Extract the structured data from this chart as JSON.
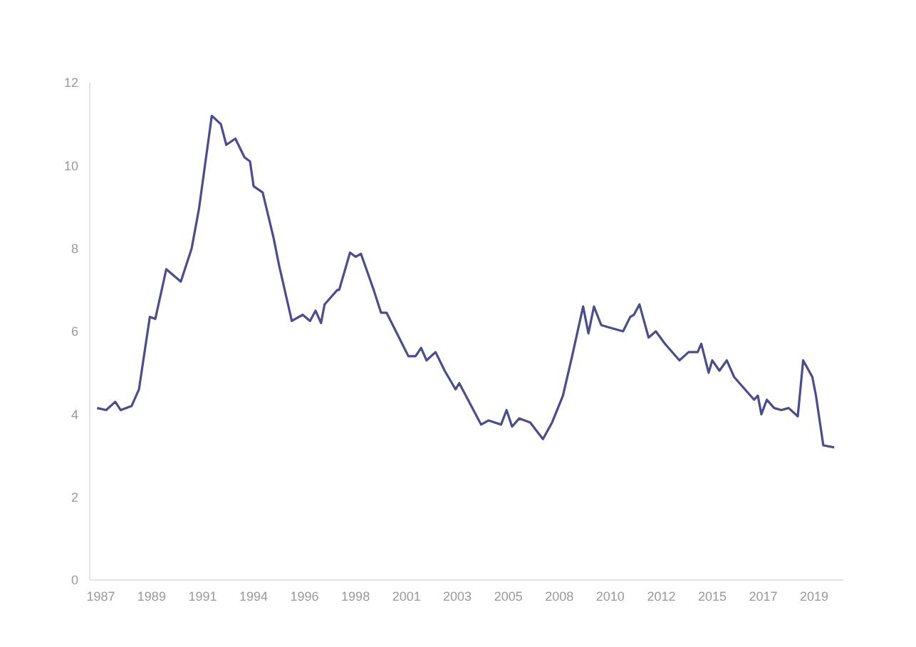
{
  "chart_data": {
    "type": "line",
    "x": [
      "1986-11",
      "1987-04",
      "1987-09",
      "1987-12",
      "1988-06",
      "1988-10",
      "1989-04",
      "1989-07",
      "1990-01",
      "1990-09",
      "1991-03",
      "1991-07",
      "1992-02",
      "1992-07",
      "1992-10",
      "1993-03",
      "1993-08",
      "1993-11",
      "1994-01",
      "1994-06",
      "1994-12",
      "1995-03",
      "1995-10",
      "1996-04",
      "1996-08",
      "1996-11",
      "1997-02",
      "1997-04",
      "1997-11",
      "1997-12",
      "1998-06",
      "1998-09",
      "1998-12",
      "1999-07",
      "1999-11",
      "2000-02",
      "2001-02",
      "2001-06",
      "2001-09",
      "2001-12",
      "2002-05",
      "2002-10",
      "2003-04",
      "2003-06",
      "2003-12",
      "2004-06",
      "2004-10",
      "2005-05",
      "2005-08",
      "2005-11",
      "2006-03",
      "2006-09",
      "2007-04",
      "2007-09",
      "2008-03",
      "2008-08",
      "2009-02",
      "2009-05",
      "2009-08",
      "2009-12",
      "2010-04",
      "2010-12",
      "2011-04",
      "2011-06",
      "2011-09",
      "2012-02",
      "2012-06",
      "2012-11",
      "2013-07",
      "2013-12",
      "2014-05",
      "2014-07",
      "2014-11",
      "2015-01",
      "2015-05",
      "2015-09",
      "2016-01",
      "2016-07",
      "2016-12",
      "2017-02",
      "2017-04",
      "2017-07",
      "2017-11",
      "2018-03",
      "2018-07",
      "2018-12",
      "2019-03",
      "2019-08",
      "2019-10",
      "2020-02",
      "2020-08"
    ],
    "series": [
      {
        "color": "#4b4b8f",
        "values": [
          4.15,
          4.1,
          4.3,
          4.1,
          4.2,
          4.6,
          6.35,
          6.3,
          7.5,
          7.2,
          8.0,
          8.95,
          11.2,
          11.0,
          10.5,
          10.65,
          10.2,
          10.1,
          9.5,
          9.35,
          8.25,
          7.6,
          6.25,
          6.4,
          6.25,
          6.5,
          6.2,
          6.65,
          7.0,
          7.0,
          7.9,
          7.8,
          7.87,
          7.0,
          6.45,
          6.45,
          5.4,
          5.4,
          5.6,
          5.3,
          5.5,
          5.05,
          4.6,
          4.75,
          4.25,
          3.75,
          3.85,
          3.75,
          4.1,
          3.7,
          3.9,
          3.8,
          3.4,
          3.8,
          4.45,
          5.4,
          6.6,
          5.95,
          6.6,
          6.15,
          6.1,
          6.0,
          6.35,
          6.4,
          6.65,
          5.85,
          6.0,
          5.7,
          5.3,
          5.5,
          5.5,
          5.7,
          5.0,
          5.3,
          5.05,
          5.3,
          4.9,
          4.6,
          4.35,
          4.45,
          4.0,
          4.35,
          4.15,
          4.1,
          4.15,
          3.95,
          5.3,
          4.9,
          4.45,
          3.25,
          3.2
        ]
      }
    ],
    "xlim": [
      "1986-07",
      "2021-01"
    ],
    "xticks": [
      {
        "value": "1987-01",
        "label": "1987"
      },
      {
        "value": "1989-05",
        "label": "1989"
      },
      {
        "value": "1991-09",
        "label": "1991"
      },
      {
        "value": "1994-01",
        "label": "1994"
      },
      {
        "value": "1996-05",
        "label": "1996"
      },
      {
        "value": "1998-09",
        "label": "1998"
      },
      {
        "value": "2001-01",
        "label": "2001"
      },
      {
        "value": "2003-05",
        "label": "2003"
      },
      {
        "value": "2005-09",
        "label": "2005"
      },
      {
        "value": "2008-01",
        "label": "2008"
      },
      {
        "value": "2010-05",
        "label": "2010"
      },
      {
        "value": "2012-09",
        "label": "2012"
      },
      {
        "value": "2015-01",
        "label": "2015"
      },
      {
        "value": "2017-05",
        "label": "2017"
      },
      {
        "value": "2019-09",
        "label": "2019"
      }
    ],
    "ylim": [
      0,
      12
    ],
    "yticks": [
      0,
      2,
      4,
      6,
      8,
      10,
      12
    ],
    "grid": false,
    "legend": false,
    "marker": "none",
    "line_style": "solid"
  }
}
